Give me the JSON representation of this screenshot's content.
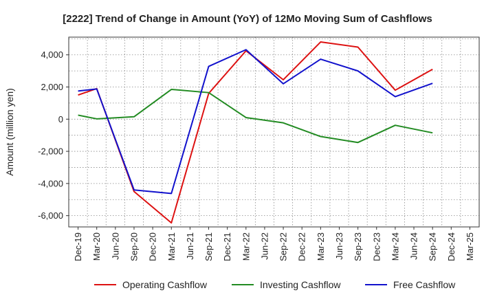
{
  "chart_data": {
    "type": "line",
    "title": "[2222]  Trend of Change in Amount (YoY) of 12Mo Moving Sum of Cashflows",
    "xlabel": "",
    "ylabel": "Amount (million yen)",
    "ylim": [
      -6700,
      5100
    ],
    "yticks": [
      4000,
      2000,
      0,
      -2000,
      -4000,
      -6000
    ],
    "ytick_labels": [
      "4,000",
      "2,000",
      "0",
      "-2,000",
      "-4,000",
      "-6,000"
    ],
    "categories": [
      "Dec-19",
      "Mar-20",
      "Jun-20",
      "Sep-20",
      "Dec-20",
      "Mar-21",
      "Jun-21",
      "Sep-21",
      "Dec-21",
      "Mar-22",
      "Jun-22",
      "Sep-22",
      "Dec-22",
      "Mar-23",
      "Jun-23",
      "Sep-23",
      "Dec-23",
      "Mar-24",
      "Jun-24",
      "Sep-24",
      "Dec-24",
      "Mar-25"
    ],
    "grid": true,
    "legend_position": "bottom",
    "series": [
      {
        "name": "Operating Cashflow",
        "color": "#dd1111",
        "values": [
          1500,
          1900,
          null,
          -4500,
          null,
          -6450,
          null,
          1600,
          null,
          4250,
          null,
          2450,
          null,
          4800,
          null,
          4480,
          null,
          1800,
          null,
          3100,
          null,
          null
        ]
      },
      {
        "name": "Investing Cashflow",
        "color": "#228b22",
        "values": [
          250,
          20,
          null,
          150,
          null,
          1850,
          null,
          1650,
          null,
          100,
          null,
          -230,
          null,
          -1080,
          null,
          -1450,
          null,
          -380,
          null,
          -850,
          null,
          null
        ]
      },
      {
        "name": "Free Cashflow",
        "color": "#1111cc",
        "values": [
          1750,
          1880,
          null,
          -4400,
          null,
          -4620,
          null,
          3280,
          null,
          4320,
          null,
          2200,
          null,
          3730,
          null,
          3000,
          null,
          1400,
          null,
          2230,
          null,
          null
        ]
      }
    ]
  }
}
